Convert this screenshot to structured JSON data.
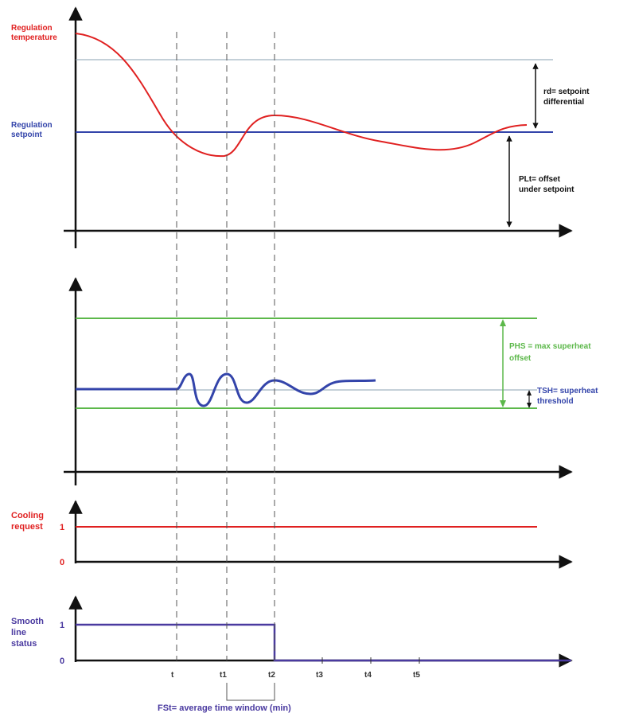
{
  "colors": {
    "axis": "#111111",
    "red": "#e02020",
    "blue": "#3344aa",
    "green": "#5cb84a",
    "thin_gray": "#7a8a9a",
    "purple": "#4a3aa0",
    "dashed": "#555555"
  },
  "panel1": {
    "y_label_temp": [
      "Regulation",
      "temperature"
    ],
    "y_label_setpoint": [
      "Regulation",
      "setpoint"
    ],
    "rd_label": [
      "rd= setpoint",
      "differential"
    ],
    "plt_label": [
      "PLt= offset",
      "under setpoint"
    ]
  },
  "panel2": {
    "phs_label": [
      "PHS = max superheat",
      "offset"
    ],
    "tsh_label": [
      "TSH= superheat",
      "threshold"
    ]
  },
  "panel3": {
    "y_label": [
      "Cooling",
      "request"
    ],
    "level_1": "1",
    "level_0": "0"
  },
  "panel4": {
    "y_label": [
      "Smooth",
      "line",
      "status"
    ],
    "level_1": "1",
    "level_0": "0"
  },
  "time_ticks": [
    "t",
    "t1",
    "t2",
    "t3",
    "t4",
    "t5"
  ],
  "fst_label": "FSt= average time window (min)"
}
